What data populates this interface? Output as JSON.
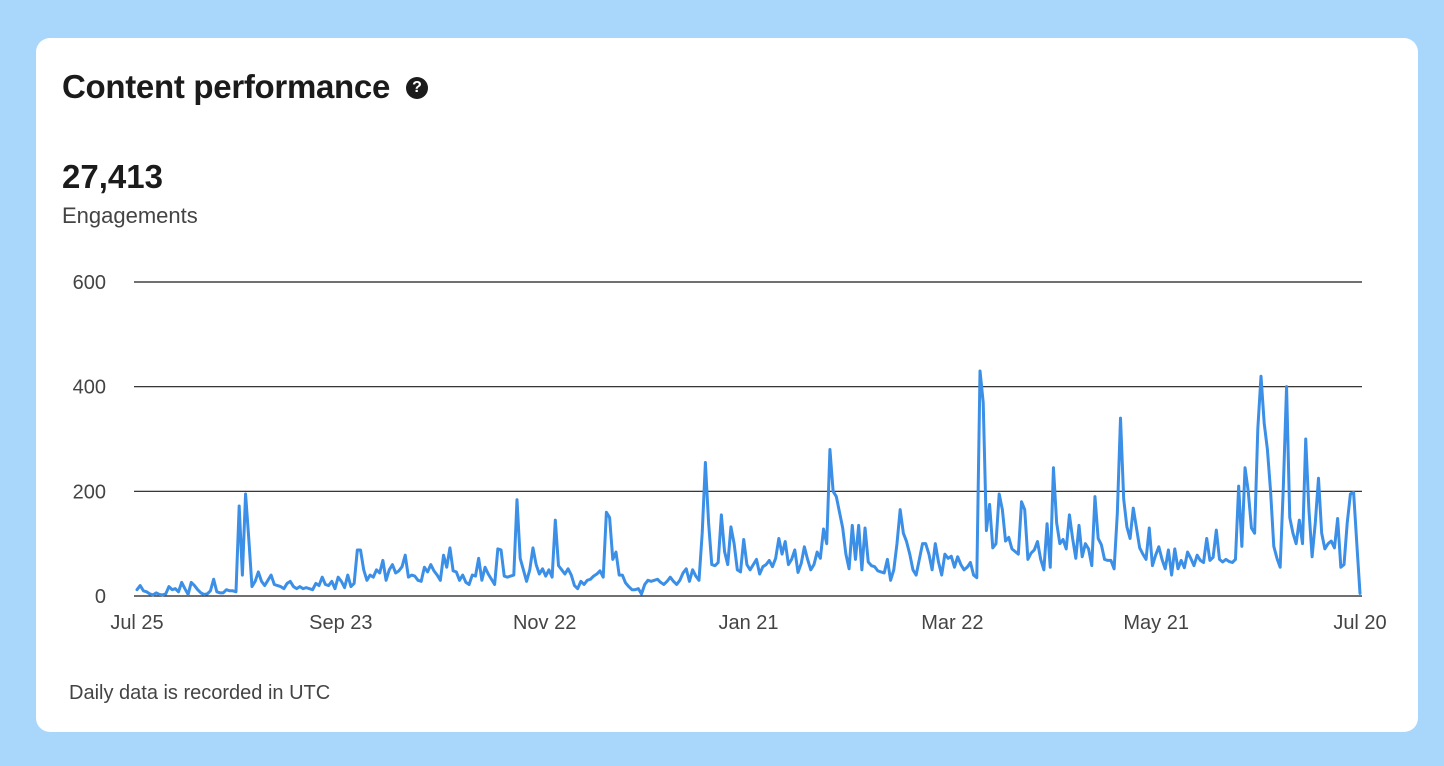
{
  "card": {
    "title": "Content performance",
    "help_glyph": "?",
    "metric_value": "27,413",
    "metric_label": "Engagements",
    "footnote": "Daily data is recorded in UTC"
  },
  "colors": {
    "background": "#a9d7fb",
    "line": "#3b8fe6",
    "grid": "#1b1b1b"
  },
  "chart_data": {
    "type": "line",
    "title": "",
    "xlabel": "",
    "ylabel": "",
    "ylim": [
      0,
      600
    ],
    "yticks": [
      0,
      200,
      400,
      600
    ],
    "xtick_labels": [
      "Jul 25",
      "Sep 23",
      "Nov 22",
      "Jan 21",
      "Mar 22",
      "May 21",
      "Jul 20"
    ],
    "grid": true,
    "series": [
      {
        "values": [
          12,
          20,
          10,
          8,
          4,
          2,
          6,
          3,
          2,
          4,
          18,
          12,
          14,
          8,
          26,
          14,
          3,
          26,
          20,
          12,
          6,
          3,
          4,
          10,
          32,
          8,
          6,
          6,
          12,
          10,
          10,
          8,
          172,
          40,
          195,
          110,
          18,
          28,
          46,
          28,
          20,
          30,
          40,
          22,
          20,
          18,
          14,
          24,
          28,
          18,
          14,
          18,
          14,
          16,
          14,
          12,
          24,
          20,
          36,
          22,
          20,
          28,
          14,
          36,
          28,
          16,
          40,
          18,
          24,
          88,
          88,
          50,
          30,
          40,
          36,
          50,
          44,
          68,
          30,
          50,
          60,
          44,
          48,
          56,
          78,
          36,
          40,
          38,
          30,
          28,
          55,
          46,
          60,
          48,
          40,
          30,
          78,
          55,
          92,
          48,
          46,
          30,
          40,
          26,
          22,
          40,
          38,
          72,
          30,
          55,
          42,
          32,
          22,
          90,
          88,
          38,
          36,
          38,
          40,
          184,
          72,
          50,
          28,
          50,
          92,
          60,
          42,
          52,
          38,
          50,
          36,
          145,
          58,
          50,
          42,
          52,
          40,
          20,
          14,
          28,
          22,
          30,
          32,
          38,
          42,
          48,
          36,
          160,
          150,
          70,
          84,
          40,
          40,
          25,
          18,
          12,
          12,
          14,
          4,
          22,
          30,
          28,
          30,
          32,
          26,
          22,
          28,
          36,
          28,
          22,
          30,
          44,
          52,
          28,
          50,
          38,
          30,
          120,
          255,
          140,
          60,
          58,
          64,
          155,
          85,
          60,
          132,
          100,
          50,
          46,
          108,
          60,
          50,
          60,
          70,
          42,
          56,
          60,
          68,
          56,
          72,
          110,
          80,
          104,
          60,
          70,
          88,
          45,
          62,
          94,
          70,
          50,
          60,
          84,
          72,
          128,
          100,
          280,
          200,
          190,
          160,
          130,
          80,
          52,
          135,
          70,
          135,
          50,
          130,
          65,
          58,
          56,
          48,
          46,
          44,
          70,
          30,
          50,
          100,
          165,
          120,
          104,
          80,
          50,
          40,
          70,
          100,
          100,
          80,
          50,
          100,
          65,
          40,
          80,
          72,
          76,
          55,
          75,
          60,
          50,
          55,
          64,
          40,
          35,
          430,
          370,
          125,
          175,
          92,
          100,
          195,
          165,
          105,
          112,
          90,
          85,
          80,
          180,
          165,
          70,
          82,
          88,
          104,
          70,
          50,
          138,
          55,
          245,
          140,
          100,
          108,
          90,
          155,
          110,
          72,
          135,
          75,
          100,
          90,
          58,
          190,
          110,
          98,
          70,
          68,
          68,
          52,
          158,
          340,
          185,
          132,
          110,
          168,
          130,
          92,
          80,
          70,
          130,
          58,
          78,
          94,
          70,
          52,
          88,
          40,
          90,
          52,
          68,
          54,
          84,
          72,
          58,
          78,
          68,
          64,
          110,
          68,
          74,
          126,
          70,
          65,
          70,
          66,
          64,
          70,
          210,
          95,
          245,
          200,
          130,
          120,
          320,
          420,
          330,
          280,
          200,
          95,
          72,
          55,
          210,
          400,
          150,
          120,
          100,
          145,
          100,
          300,
          165,
          75,
          140,
          225,
          120,
          90,
          100,
          105,
          92,
          148,
          55,
          60,
          140,
          195,
          198,
          100,
          5
        ]
      }
    ]
  }
}
